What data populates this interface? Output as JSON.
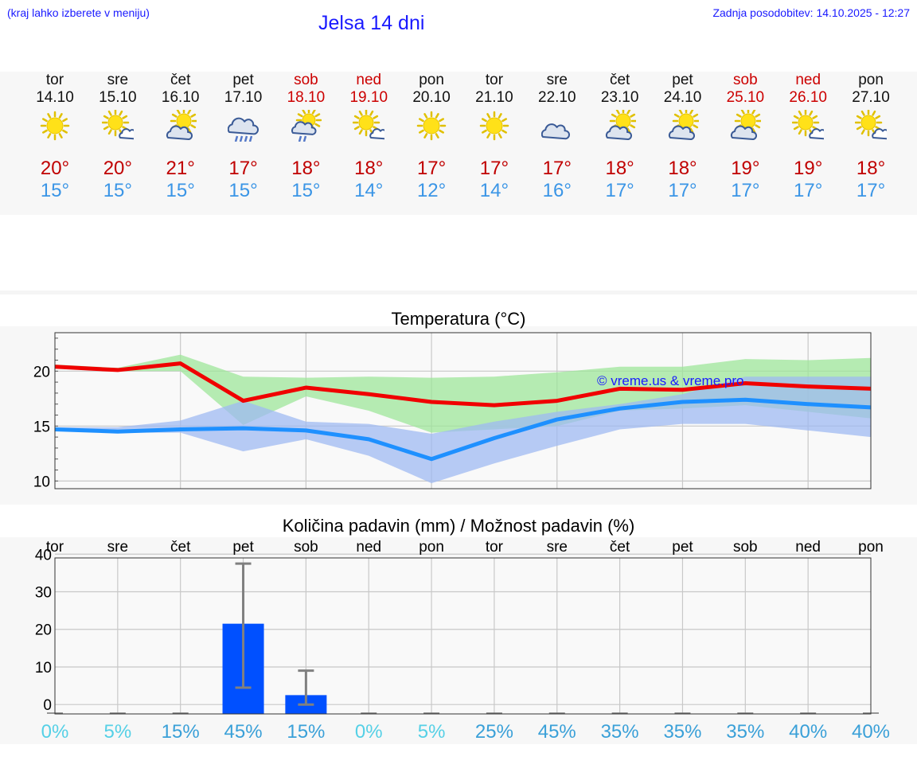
{
  "header": {
    "hint": "(kraj lahko izberete v meniju)",
    "title": "Jelsa 14 dni",
    "updated": "Zadnja posodobitev: 14.10.2025 - 12:27"
  },
  "days": [
    {
      "name": "tor",
      "date": "14.10",
      "weekend": false,
      "icon": "sun-icon",
      "tmax": "20°",
      "tmin": "15°"
    },
    {
      "name": "sre",
      "date": "15.10",
      "weekend": false,
      "icon": "sun-small-cloud-icon",
      "tmax": "20°",
      "tmin": "15°"
    },
    {
      "name": "čet",
      "date": "16.10",
      "weekend": false,
      "icon": "sun-cloud-icon",
      "tmax": "21°",
      "tmin": "15°"
    },
    {
      "name": "pet",
      "date": "17.10",
      "weekend": false,
      "icon": "rain-cloud-icon",
      "tmax": "17°",
      "tmin": "15°"
    },
    {
      "name": "sob",
      "date": "18.10",
      "weekend": true,
      "icon": "sun-rain-icon",
      "tmax": "18°",
      "tmin": "15°"
    },
    {
      "name": "ned",
      "date": "19.10",
      "weekend": true,
      "icon": "sun-small-cloud-icon",
      "tmax": "18°",
      "tmin": "14°"
    },
    {
      "name": "pon",
      "date": "20.10",
      "weekend": false,
      "icon": "sun-icon",
      "tmax": "17°",
      "tmin": "12°"
    },
    {
      "name": "tor",
      "date": "21.10",
      "weekend": false,
      "icon": "sun-icon",
      "tmax": "17°",
      "tmin": "14°"
    },
    {
      "name": "sre",
      "date": "22.10",
      "weekend": false,
      "icon": "cloud-icon",
      "tmax": "17°",
      "tmin": "16°"
    },
    {
      "name": "čet",
      "date": "23.10",
      "weekend": false,
      "icon": "sun-cloud-icon",
      "tmax": "18°",
      "tmin": "17°"
    },
    {
      "name": "pet",
      "date": "24.10",
      "weekend": false,
      "icon": "sun-cloud-icon",
      "tmax": "18°",
      "tmin": "17°"
    },
    {
      "name": "sob",
      "date": "25.10",
      "weekend": true,
      "icon": "sun-cloud-icon",
      "tmax": "19°",
      "tmin": "17°"
    },
    {
      "name": "ned",
      "date": "26.10",
      "weekend": true,
      "icon": "sun-small-cloud-icon",
      "tmax": "19°",
      "tmin": "17°"
    },
    {
      "name": "pon",
      "date": "27.10",
      "weekend": false,
      "icon": "sun-small-cloud-icon",
      "tmax": "18°",
      "tmin": "17°"
    }
  ],
  "colors": {
    "weekend": "#cc0000",
    "tmax": "#c00000",
    "tmin": "#3a95e6",
    "max_line": "#f00000",
    "min_line": "#1e90ff",
    "max_band": "#9ee59a",
    "min_band": "#9fb9f2",
    "bar": "#0050ff",
    "whisker": "#808080"
  },
  "chart_data": [
    {
      "type": "line",
      "title": "Temperatura (°C)",
      "watermark": "© vreme.us & vreme.pro",
      "x": [
        0,
        1,
        2,
        3,
        4,
        5,
        6,
        7,
        8,
        9,
        10,
        11,
        12,
        13
      ],
      "ylim": [
        9.3,
        23.5
      ],
      "yticks": [
        10,
        15,
        20
      ],
      "series": [
        {
          "name": "max",
          "values": [
            20.4,
            20.1,
            20.7,
            17.3,
            18.5,
            17.9,
            17.2,
            16.9,
            17.3,
            18.4,
            18.3,
            18.9,
            18.6,
            18.4
          ]
        },
        {
          "name": "min",
          "values": [
            14.7,
            14.5,
            14.7,
            14.8,
            14.6,
            13.8,
            12.0,
            13.9,
            15.6,
            16.6,
            17.2,
            17.4,
            17.0,
            16.7
          ]
        }
      ],
      "bands": [
        {
          "name": "max-range",
          "upper": [
            20.6,
            20.3,
            21.5,
            19.5,
            19.4,
            19.5,
            19.4,
            19.5,
            19.9,
            20.4,
            20.4,
            21.1,
            21.0,
            21.2
          ],
          "lower": [
            20.3,
            20.0,
            20.0,
            15.1,
            17.7,
            16.4,
            14.4,
            14.7,
            15.0,
            16.4,
            16.6,
            16.9,
            16.3,
            15.7
          ]
        },
        {
          "name": "min-range",
          "upper": [
            14.9,
            14.9,
            15.5,
            17.3,
            15.4,
            15.2,
            14.3,
            15.4,
            16.3,
            17.0,
            17.9,
            19.5,
            19.5,
            19.5
          ],
          "lower": [
            14.6,
            14.4,
            14.4,
            12.7,
            13.8,
            12.3,
            9.8,
            11.6,
            13.2,
            14.7,
            15.2,
            15.2,
            14.6,
            14.0
          ]
        }
      ]
    },
    {
      "type": "bar",
      "title": "Količina padavin (mm) / Možnost padavin (%)",
      "categories": [
        "tor",
        "sre",
        "čet",
        "pet",
        "sob",
        "ned",
        "pon",
        "tor",
        "sre",
        "čet",
        "pet",
        "sob",
        "ned",
        "pon"
      ],
      "ylim": [
        -2.5,
        39
      ],
      "yticks": [
        0,
        10,
        20,
        30,
        40
      ],
      "values": [
        0,
        0,
        0,
        21.5,
        2.5,
        0,
        0,
        0,
        0,
        0,
        0,
        0,
        0,
        0
      ],
      "error_low": [
        0,
        0,
        0,
        4.5,
        0,
        0,
        0,
        0,
        0,
        0,
        0,
        0,
        0,
        0
      ],
      "error_high": [
        0,
        0,
        0,
        37.5,
        9,
        0,
        0,
        0,
        0,
        0,
        0,
        0,
        0,
        0
      ],
      "probability": [
        "0%",
        "5%",
        "15%",
        "45%",
        "15%",
        "0%",
        "5%",
        "25%",
        "45%",
        "35%",
        "35%",
        "35%",
        "40%",
        "40%"
      ],
      "prob_colors": [
        "#55d0e6",
        "#55d0e6",
        "#3aa0d8",
        "#3aa0d8",
        "#3aa0d8",
        "#55d0e6",
        "#55d0e6",
        "#3aa0d8",
        "#3aa0d8",
        "#3aa0d8",
        "#3aa0d8",
        "#3aa0d8",
        "#3aa0d8",
        "#3aa0d8"
      ]
    }
  ]
}
